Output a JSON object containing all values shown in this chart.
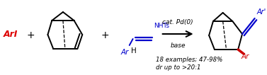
{
  "figsize": [
    3.77,
    1.06
  ],
  "dpi": 100,
  "bg_color": "#ffffff",
  "arl_color": "#dd0000",
  "blue_color": "#0000cc",
  "black_color": "#000000",
  "red_color": "#cc0000",
  "arl_text": "ArI",
  "cat_text": "cat. Pd(0)",
  "base_text": "base",
  "examples_text": "18 examples; 47-98%",
  "dr_text": "dr up to >20:1"
}
